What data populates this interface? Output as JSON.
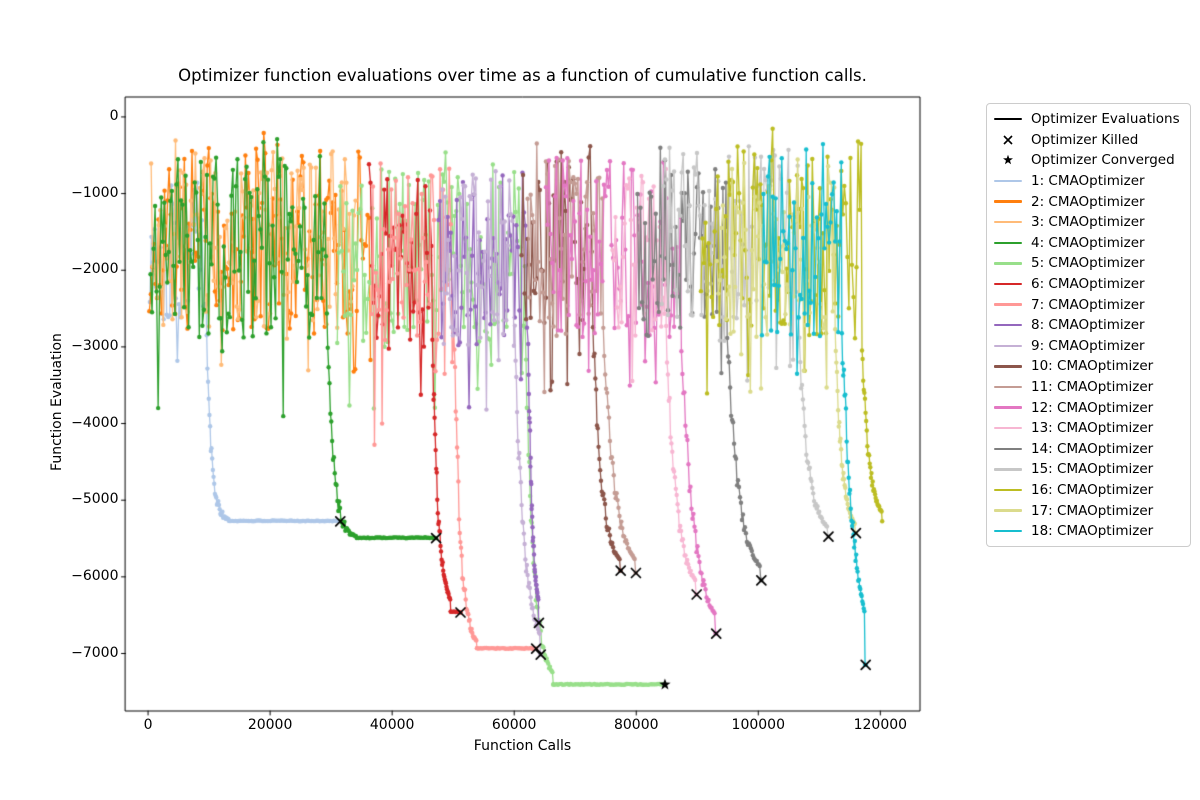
{
  "chart_data": {
    "type": "line",
    "title": "Optimizer function evaluations over time as a function of cumulative function calls.",
    "xlabel": "Function Calls",
    "ylabel": "Function Evaluation",
    "xlim": [
      -3700,
      126500
    ],
    "ylim": [
      -7750,
      260
    ],
    "x_ticks": [
      0,
      20000,
      40000,
      60000,
      80000,
      100000,
      120000
    ],
    "x_tick_labels": [
      "0",
      "20000",
      "40000",
      "60000",
      "80000",
      "100000",
      "120000"
    ],
    "y_ticks": [
      0,
      -1000,
      -2000,
      -3000,
      -4000,
      -5000,
      -6000,
      -7000
    ],
    "y_tick_labels": [
      "0",
      "−1000",
      "−2000",
      "−3000",
      "−4000",
      "−5000",
      "−6000",
      "−7000"
    ],
    "grid": false,
    "legend_position": "outside-right",
    "legend_static": [
      {
        "label": "Optimizer Evaluations",
        "type": "line",
        "color": "#000000"
      },
      {
        "label": "Optimizer Killed",
        "type": "x",
        "color": "#000000"
      },
      {
        "label": "Optimizer Converged",
        "type": "star",
        "color": "#000000"
      }
    ],
    "series": [
      {
        "id": 1,
        "label": "1: CMAOptimizer",
        "color": "#aec7e8",
        "seed": 101,
        "noisy": {
          "x0": 300,
          "x1": 9500,
          "hi": -600,
          "lo": -2700,
          "spike": 750
        },
        "descent": {
          "x0": 9500,
          "x1": 13300,
          "from": -2500,
          "to": -5270,
          "k": 5.0
        },
        "plateau": {
          "x0": 13300,
          "x1": 31400,
          "y": -5270
        },
        "end": {
          "x": 31500,
          "y": -5275,
          "marker": "killed"
        }
      },
      {
        "id": 2,
        "label": "2: CMAOptimizer",
        "color": "#ff7f0e",
        "seed": 202,
        "noisy": {
          "x0": 200,
          "x1": 36500,
          "hi": -400,
          "lo": -2850,
          "spike": 700
        },
        "descent": null,
        "plateau": null,
        "end": {
          "x": 36500,
          "y": -1500,
          "marker": "none"
        }
      },
      {
        "id": 3,
        "label": "3: CMAOptimizer",
        "color": "#ffbb78",
        "seed": 303,
        "noisy": {
          "x0": 500,
          "x1": 34000,
          "hi": -450,
          "lo": -2750,
          "spike": 700
        },
        "descent": null,
        "plateau": null,
        "end": {
          "x": 34000,
          "y": -1500,
          "marker": "none"
        }
      },
      {
        "id": 4,
        "label": "4: CMAOptimizer",
        "color": "#2ca02c",
        "seed": 404,
        "noisy": {
          "x0": 400,
          "x1": 29300,
          "hi": -500,
          "lo": -2900,
          "spike": 1100
        },
        "descent": {
          "x0": 29300,
          "x1": 34200,
          "from": -2500,
          "to": -5490,
          "k": 5.0
        },
        "plateau": {
          "x0": 34200,
          "x1": 47100,
          "y": -5490
        },
        "end": {
          "x": 47200,
          "y": -5495,
          "marker": "killed"
        }
      },
      {
        "id": 5,
        "label": "5: CMAOptimizer",
        "color": "#98df8a",
        "seed": 505,
        "noisy": {
          "x0": 31000,
          "x1": 61800,
          "hi": -600,
          "lo": -3050,
          "spike": 800
        },
        "descent": {
          "x0": 61800,
          "x1": 66400,
          "from": -2800,
          "to": -7400,
          "k": 3.5
        },
        "plateau": {
          "x0": 66400,
          "x1": 84600,
          "y": -7403
        },
        "end": {
          "x": 84700,
          "y": -7405,
          "marker": "converged"
        }
      },
      {
        "id": 6,
        "label": "6: CMAOptimizer",
        "color": "#d62728",
        "seed": 606,
        "noisy": {
          "x0": 36200,
          "x1": 46600,
          "hi": -600,
          "lo": -3050,
          "spike": 1300
        },
        "descent": {
          "x0": 46600,
          "x1": 49600,
          "from": -2900,
          "to": -6450,
          "k": 3.2
        },
        "plateau": {
          "x0": 49600,
          "x1": 51100,
          "y": -6455
        },
        "end": {
          "x": 51200,
          "y": -6465,
          "marker": "killed"
        }
      },
      {
        "id": 7,
        "label": "7: CMAOptimizer",
        "color": "#ff9896",
        "seed": 707,
        "noisy": {
          "x0": 36600,
          "x1": 50200,
          "hi": -650,
          "lo": -3100,
          "spike": 1200
        },
        "descent": {
          "x0": 50200,
          "x1": 53900,
          "from": -2900,
          "to": -6930,
          "k": 3.8
        },
        "plateau": {
          "x0": 53900,
          "x1": 63500,
          "y": -6933
        },
        "end": {
          "x": 63600,
          "y": -6935,
          "marker": "killed"
        }
      },
      {
        "id": 8,
        "label": "8: CMAOptimizer",
        "color": "#9467bd",
        "seed": 808,
        "noisy": {
          "x0": 47600,
          "x1": 62300,
          "hi": -700,
          "lo": -3050,
          "spike": 1200
        },
        "descent": {
          "x0": 62300,
          "x1": 64000,
          "from": -2900,
          "to": -6590,
          "k": 2.6
        },
        "plateau": null,
        "end": {
          "x": 64050,
          "y": -6600,
          "marker": "killed"
        }
      },
      {
        "id": 9,
        "label": "9: CMAOptimizer",
        "color": "#c5b0d5",
        "seed": 909,
        "noisy": {
          "x0": 48200,
          "x1": 60100,
          "hi": -700,
          "lo": -3100,
          "spike": 1300
        },
        "descent": {
          "x0": 60100,
          "x1": 64300,
          "from": -2950,
          "to": -7010,
          "k": 2.8
        },
        "plateau": null,
        "end": {
          "x": 64350,
          "y": -7015,
          "marker": "killed"
        }
      },
      {
        "id": 10,
        "label": "10: CMAOptimizer",
        "color": "#8c564b",
        "seed": 1010,
        "noisy": {
          "x0": 61200,
          "x1": 72900,
          "hi": -500,
          "lo": -2800,
          "spike": 800
        },
        "descent": {
          "x0": 72900,
          "x1": 77400,
          "from": -2700,
          "to": -5915,
          "k": 3.2
        },
        "plateau": null,
        "end": {
          "x": 77450,
          "y": -5920,
          "marker": "killed"
        }
      },
      {
        "id": 11,
        "label": "11: CMAOptimizer",
        "color": "#c49c94",
        "seed": 1111,
        "noisy": {
          "x0": 62200,
          "x1": 74600,
          "hi": -550,
          "lo": -2900,
          "spike": 800
        },
        "descent": {
          "x0": 74600,
          "x1": 79900,
          "from": -2700,
          "to": -5945,
          "k": 3.0
        },
        "plateau": null,
        "end": {
          "x": 79950,
          "y": -5950,
          "marker": "killed"
        }
      },
      {
        "id": 12,
        "label": "12: CMAOptimizer",
        "color": "#e377c2",
        "seed": 1212,
        "noisy": {
          "x0": 65200,
          "x1": 87400,
          "hi": -500,
          "lo": -2900,
          "spike": 700
        },
        "descent": {
          "x0": 87400,
          "x1": 93000,
          "from": -2850,
          "to": -6735,
          "k": 2.8
        },
        "plateau": null,
        "end": {
          "x": 93100,
          "y": -6740,
          "marker": "killed"
        }
      },
      {
        "id": 13,
        "label": "13: CMAOptimizer",
        "color": "#f7b6d2",
        "seed": 1313,
        "noisy": {
          "x0": 76100,
          "x1": 84900,
          "hi": -650,
          "lo": -2900,
          "spike": 700
        },
        "descent": {
          "x0": 84900,
          "x1": 89800,
          "from": -2800,
          "to": -6225,
          "k": 3.0
        },
        "plateau": null,
        "end": {
          "x": 89900,
          "y": -6230,
          "marker": "killed"
        }
      },
      {
        "id": 14,
        "label": "14: CMAOptimizer",
        "color": "#7f7f7f",
        "seed": 1414,
        "noisy": {
          "x0": 80200,
          "x1": 94900,
          "hi": -550,
          "lo": -2900,
          "spike": 750
        },
        "descent": {
          "x0": 94900,
          "x1": 100400,
          "from": -2800,
          "to": -6035,
          "k": 3.0
        },
        "plateau": null,
        "end": {
          "x": 100500,
          "y": -6045,
          "marker": "killed"
        }
      },
      {
        "id": 15,
        "label": "15: CMAOptimizer",
        "color": "#c7c7c7",
        "seed": 1515,
        "noisy": {
          "x0": 84200,
          "x1": 106600,
          "hi": -350,
          "lo": -2850,
          "spike": 700
        },
        "descent": {
          "x0": 106600,
          "x1": 111400,
          "from": -2750,
          "to": -5465,
          "k": 3.2
        },
        "plateau": null,
        "end": {
          "x": 111500,
          "y": -5475,
          "marker": "killed"
        }
      },
      {
        "id": 16,
        "label": "16: CMAOptimizer",
        "color": "#bcbd22",
        "seed": 1616,
        "noisy": {
          "x0": 90600,
          "x1": 117000,
          "hi": -300,
          "lo": -2900,
          "spike": 750
        },
        "descent": {
          "x0": 117000,
          "x1": 120300,
          "from": -2950,
          "to": -5275,
          "k": 3.0
        },
        "plateau": null,
        "end": {
          "x": 120400,
          "y": -5280,
          "marker": "none"
        }
      },
      {
        "id": 17,
        "label": "17: CMAOptimizer",
        "color": "#dbdb8d",
        "seed": 1717,
        "noisy": {
          "x0": 93200,
          "x1": 112600,
          "hi": -550,
          "lo": -2900,
          "spike": 700
        },
        "descent": {
          "x0": 112600,
          "x1": 115900,
          "from": -2800,
          "to": -5425,
          "k": 3.2
        },
        "plateau": null,
        "end": {
          "x": 116000,
          "y": -5430,
          "marker": "killed"
        }
      },
      {
        "id": 18,
        "label": "18: CMAOptimizer",
        "color": "#17becf",
        "seed": 1818,
        "noisy": {
          "x0": 100600,
          "x1": 113700,
          "hi": -350,
          "lo": -2900,
          "spike": 750
        },
        "descent": {
          "x0": 113700,
          "x1": 117500,
          "from": -2750,
          "to": -7145,
          "k": 1.9
        },
        "plateau": null,
        "end": {
          "x": 117600,
          "y": -7148,
          "marker": "killed"
        }
      }
    ]
  }
}
